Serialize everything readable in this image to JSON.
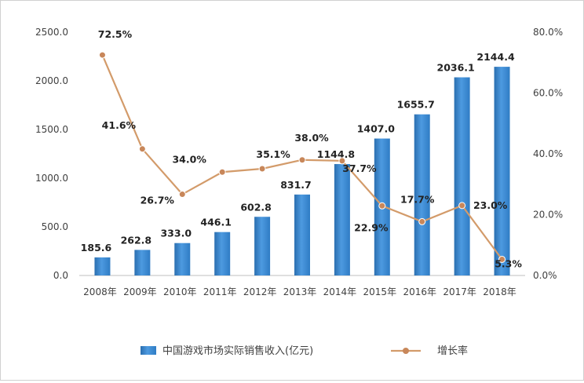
{
  "chart_data": {
    "type": "bar",
    "categories": [
      "2008年",
      "2009年",
      "2010年",
      "2011年",
      "2012年",
      "2013年",
      "2014年",
      "2015年",
      "2016年",
      "2017年",
      "2018年"
    ],
    "series": [
      {
        "name": "中国游戏市场实际销售收入(亿元)",
        "type": "bar",
        "axis": "left",
        "values": [
          185.6,
          262.8,
          333.0,
          446.1,
          602.8,
          831.7,
          1144.8,
          1407.0,
          1655.7,
          2036.1,
          2144.4
        ],
        "labels": [
          "185.6",
          "262.8",
          "333.0",
          "446.1",
          "602.8",
          "831.7",
          "1144.8",
          "1407.0",
          "1655.7",
          "2036.1",
          "2144.4"
        ]
      },
      {
        "name": "增长率",
        "type": "line",
        "axis": "right",
        "values": [
          72.5,
          41.6,
          26.7,
          34.0,
          35.1,
          38.0,
          37.7,
          22.9,
          17.7,
          23.0,
          5.3
        ],
        "labels": [
          "72.5%",
          "41.6%",
          "26.7%",
          "34.0%",
          "35.1%",
          "38.0%",
          "37.7%",
          "22.9%",
          "17.7%",
          "23.0%",
          "5.3%"
        ]
      }
    ],
    "y_left": {
      "min": 0,
      "max": 2500,
      "ticks": [
        "0.0",
        "500.0",
        "1000.0",
        "1500.0",
        "2000.0",
        "2500.0"
      ]
    },
    "y_right": {
      "min": 0,
      "max": 80,
      "ticks": [
        "0.0%",
        "20.0%",
        "40.0%",
        "60.0%",
        "80.0%"
      ]
    },
    "grid": false,
    "legend_position": "bottom",
    "colors": {
      "bar": "#3f8fd2",
      "bar_dark": "#2b6fb0",
      "line": "#d39b6a",
      "marker": "#c8875a"
    }
  }
}
